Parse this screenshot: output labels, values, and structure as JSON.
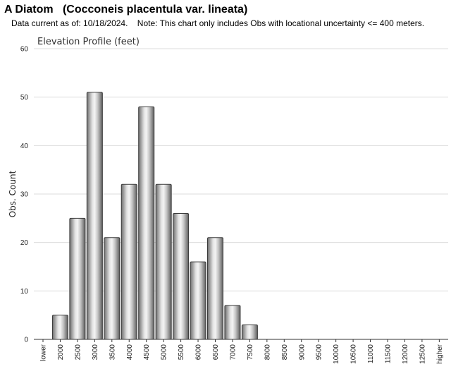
{
  "header": {
    "title": "A Diatom   (Cocconeis placentula var. lineata)",
    "note": "Data current as of: 10/18/2024.    Note: This chart only includes Obs with locational uncertainty <= 400 meters."
  },
  "chart_data": {
    "type": "bar",
    "title": "Elevation Profile (feet)",
    "xlabel": "",
    "ylabel": "Obs. Count",
    "ylim": [
      0,
      60
    ],
    "yticks": [
      0,
      10,
      20,
      30,
      40,
      50,
      60
    ],
    "grid": true,
    "categories": [
      "lower",
      "2000",
      "2500",
      "3000",
      "3500",
      "4000",
      "4500",
      "5000",
      "5500",
      "6000",
      "6500",
      "7000",
      "7500",
      "8000",
      "8500",
      "9000",
      "9500",
      "10000",
      "10500",
      "11000",
      "11500",
      "12000",
      "12500",
      "higher"
    ],
    "values": [
      0,
      5,
      25,
      51,
      21,
      32,
      48,
      32,
      26,
      16,
      21,
      7,
      3,
      0,
      0,
      0,
      0,
      0,
      0,
      0,
      0,
      0,
      0,
      0
    ],
    "bar_color": "#b0b0b0"
  }
}
